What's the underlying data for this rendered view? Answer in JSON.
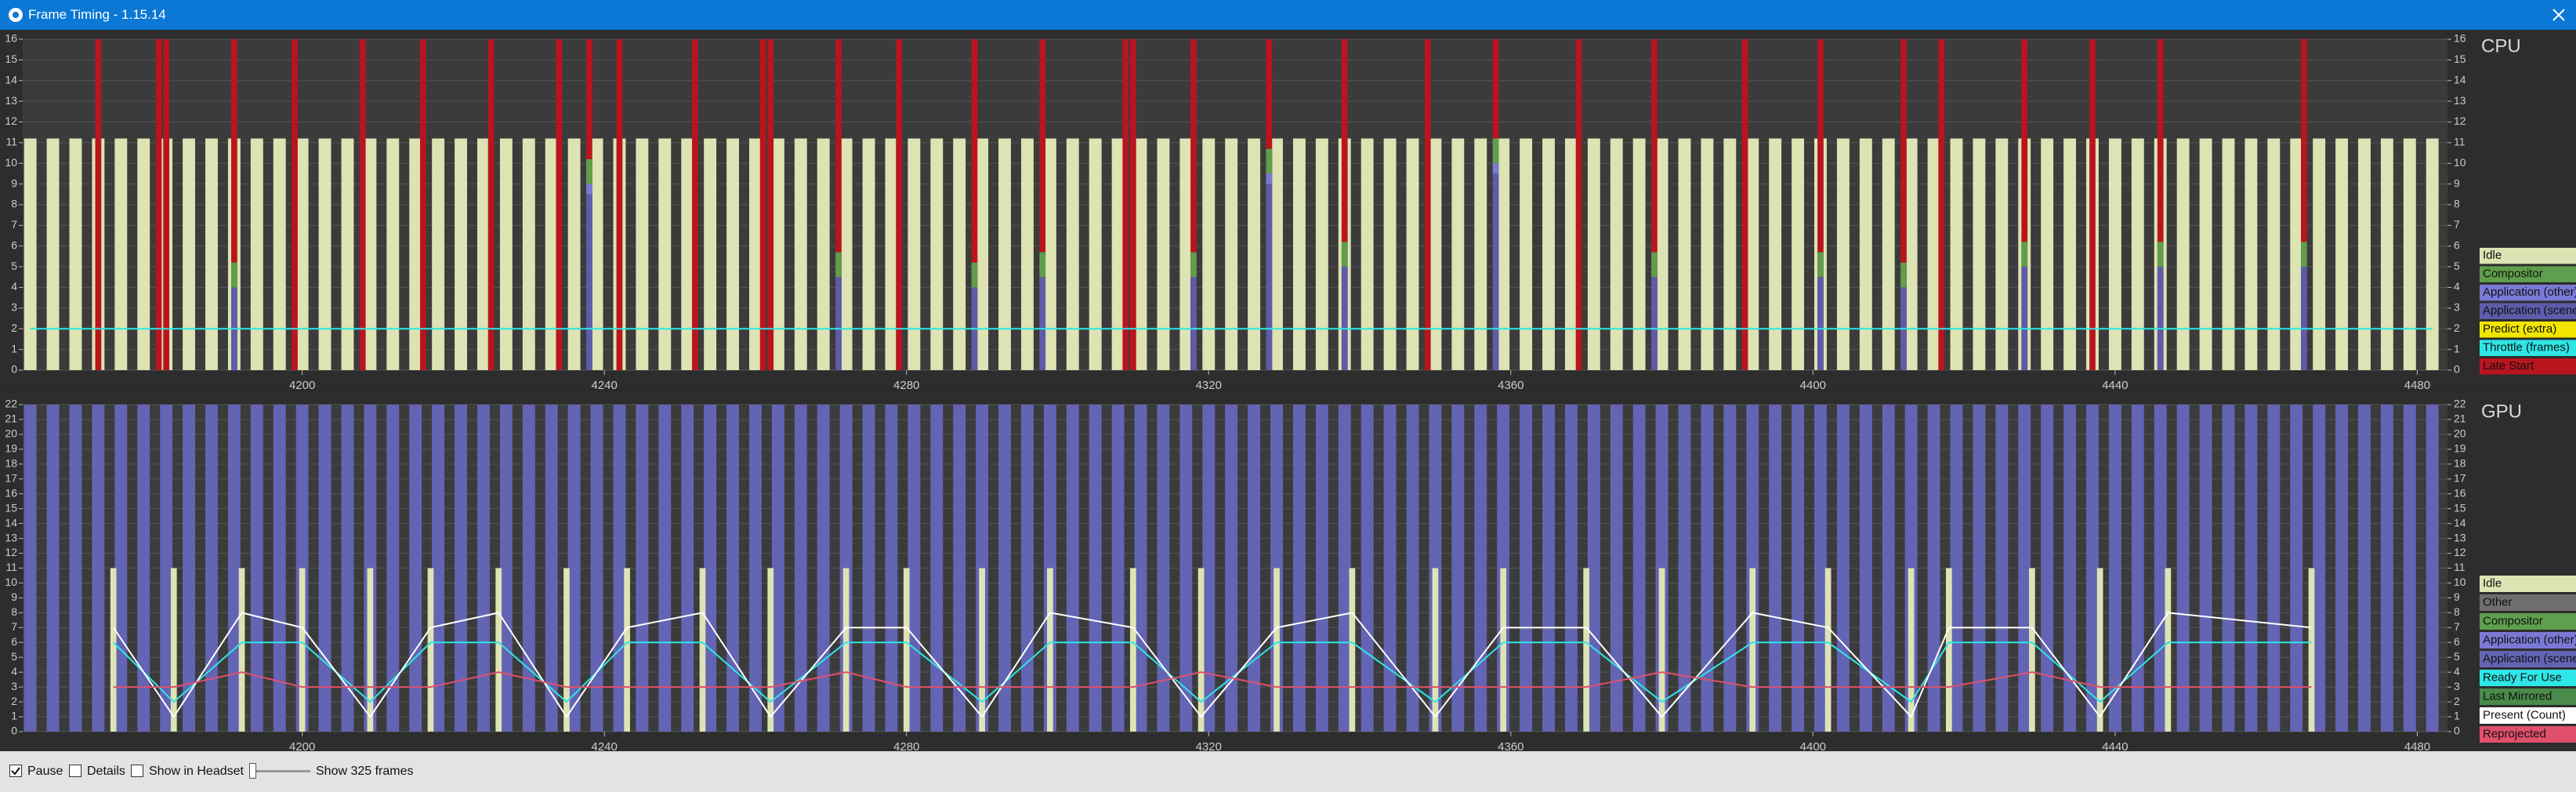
{
  "window": {
    "title": "Frame Timing - 1.15.14"
  },
  "chart_data": [
    {
      "type": "bar",
      "title": "CPU",
      "xlim": [
        4163,
        4484
      ],
      "ylim": [
        0,
        16
      ],
      "yticks": [
        0,
        1,
        2,
        3,
        4,
        5,
        6,
        7,
        8,
        9,
        10,
        11,
        12,
        13,
        14,
        15,
        16
      ],
      "xticks": [
        4200,
        4240,
        4280,
        4320,
        4360,
        4400,
        4440,
        4480
      ],
      "grid": true,
      "x": [
        4164,
        4167,
        4170,
        4173,
        4176,
        4179,
        4182,
        4185,
        4188,
        4191,
        4194,
        4197,
        4200,
        4203,
        4206,
        4209,
        4212,
        4215,
        4218,
        4221,
        4224,
        4227,
        4230,
        4233,
        4236,
        4239,
        4242,
        4245,
        4248,
        4251,
        4254,
        4257,
        4260,
        4263,
        4266,
        4269,
        4272,
        4275,
        4278,
        4281,
        4284,
        4287,
        4290,
        4293,
        4296,
        4299,
        4302,
        4305,
        4308,
        4311,
        4314,
        4317,
        4320,
        4323,
        4326,
        4329,
        4332,
        4335,
        4338,
        4341,
        4344,
        4347,
        4350,
        4353,
        4356,
        4359,
        4362,
        4365,
        4368,
        4371,
        4374,
        4377,
        4380,
        4383,
        4386,
        4389,
        4392,
        4395,
        4398,
        4401,
        4404,
        4407,
        4410,
        4413,
        4416,
        4419,
        4422,
        4425,
        4428,
        4431,
        4434,
        4437,
        4440,
        4443,
        4446,
        4449,
        4452,
        4455,
        4458,
        4461,
        4464,
        4467,
        4470,
        4473,
        4476,
        4479,
        4482
      ],
      "series": [
        {
          "name": "Idle",
          "kind": "bar",
          "color": "#dde3b3",
          "values": [
            11.2,
            11.2,
            11.2,
            11.2,
            11.2,
            11.2,
            11.2,
            11.2,
            11.2,
            11.2,
            11.2,
            11.2,
            11.2,
            11.2,
            11.2,
            11.2,
            11.2,
            11.2,
            11.2,
            11.2,
            11.2,
            11.2,
            11.2,
            11.2,
            11.2,
            11.2,
            11.2,
            11.2,
            11.2,
            11.2,
            11.2,
            11.2,
            11.2,
            11.2,
            11.2,
            11.2,
            11.2,
            11.2,
            11.2,
            11.2,
            11.2,
            11.2,
            11.2,
            11.2,
            11.2,
            11.2,
            11.2,
            11.2,
            11.2,
            11.2,
            11.2,
            11.2,
            11.2,
            11.2,
            11.2,
            11.2,
            11.2,
            11.2,
            11.2,
            11.2,
            11.2,
            11.2,
            11.2,
            11.2,
            11.2,
            11.2,
            11.2,
            11.2,
            11.2,
            11.2,
            11.2,
            11.2,
            11.2,
            11.2,
            11.2,
            11.2,
            11.2,
            11.2,
            11.2,
            11.2,
            11.2,
            11.2,
            11.2,
            11.2,
            11.2,
            11.2,
            11.2,
            11.2,
            11.2,
            11.2,
            11.2,
            11.2,
            11.2,
            11.2,
            11.2,
            11.2,
            11.2,
            11.2,
            11.2,
            11.2,
            11.2,
            11.2,
            11.2,
            11.2,
            11.2,
            11.2,
            11.2
          ]
        },
        {
          "name": "Compositor",
          "kind": "bar",
          "stack": true,
          "color": "#5f9e4c",
          "x": [
            4191,
            4238,
            4271,
            4289,
            4298,
            4318,
            4328,
            4338,
            4358,
            4379,
            4401,
            4412,
            4428,
            4446,
            4465
          ],
          "values": [
            1.2,
            1.2,
            1.2,
            1.2,
            1.2,
            1.2,
            1.2,
            1.2,
            1.2,
            1.2,
            1.2,
            1.2,
            1.2,
            1.2,
            1.2
          ]
        },
        {
          "name": "Application (other)",
          "kind": "bar",
          "stack": true,
          "color": "#7a7ad6",
          "x": [
            4238,
            4328,
            4358
          ],
          "values": [
            0.5,
            0.5,
            0.5
          ]
        },
        {
          "name": "Application (scene)",
          "kind": "bar",
          "stack": true,
          "color": "#5c5caa",
          "x": [
            4191,
            4238,
            4271,
            4289,
            4298,
            4318,
            4328,
            4338,
            4358,
            4379,
            4401,
            4412,
            4428,
            4446,
            4465
          ],
          "values": [
            4,
            8.5,
            4.5,
            4,
            4.5,
            4.5,
            9,
            5,
            9.5,
            4.5,
            4.5,
            4,
            5,
            5,
            5
          ]
        },
        {
          "name": "Predict (extra)",
          "kind": "line",
          "color": "#f2e600",
          "x": [],
          "values": []
        },
        {
          "name": "Throttle (frames)",
          "kind": "line",
          "color": "#2ee6e6",
          "x": [
            4164,
            4482
          ],
          "values": [
            2,
            2
          ]
        },
        {
          "name": "Late Start",
          "kind": "bar",
          "color": "#b9151f",
          "x": [
            4173,
            4181,
            4182,
            4191,
            4199,
            4208,
            4216,
            4225,
            4234,
            4238,
            4242,
            4252,
            4261,
            4262,
            4271,
            4279,
            4289,
            4298,
            4309,
            4310,
            4318,
            4328,
            4338,
            4349,
            4358,
            4369,
            4379,
            4391,
            4401,
            4412,
            4417,
            4428,
            4437,
            4446,
            4465
          ],
          "values": [
            16,
            16,
            16,
            16,
            16,
            16,
            16,
            16,
            16,
            16,
            16,
            16,
            16,
            16,
            16,
            16,
            16,
            16,
            16,
            16,
            16,
            16,
            16,
            16,
            16,
            16,
            16,
            16,
            16,
            16,
            16,
            16,
            16,
            16,
            16
          ]
        }
      ]
    },
    {
      "type": "bar",
      "title": "GPU",
      "xlim": [
        4163,
        4484
      ],
      "ylim": [
        0,
        22
      ],
      "yticks": [
        0,
        1,
        2,
        3,
        4,
        5,
        6,
        7,
        8,
        9,
        10,
        11,
        12,
        13,
        14,
        15,
        16,
        17,
        18,
        19,
        20,
        21,
        22
      ],
      "xticks": [
        4200,
        4240,
        4280,
        4320,
        4360,
        4400,
        4440,
        4480
      ],
      "grid": true,
      "x": [
        4164,
        4167,
        4170,
        4173,
        4176,
        4179,
        4182,
        4185,
        4188,
        4191,
        4194,
        4197,
        4200,
        4203,
        4206,
        4209,
        4212,
        4215,
        4218,
        4221,
        4224,
        4227,
        4230,
        4233,
        4236,
        4239,
        4242,
        4245,
        4248,
        4251,
        4254,
        4257,
        4260,
        4263,
        4266,
        4269,
        4272,
        4275,
        4278,
        4281,
        4284,
        4287,
        4290,
        4293,
        4296,
        4299,
        4302,
        4305,
        4308,
        4311,
        4314,
        4317,
        4320,
        4323,
        4326,
        4329,
        4332,
        4335,
        4338,
        4341,
        4344,
        4347,
        4350,
        4353,
        4356,
        4359,
        4362,
        4365,
        4368,
        4371,
        4374,
        4377,
        4380,
        4383,
        4386,
        4389,
        4392,
        4395,
        4398,
        4401,
        4404,
        4407,
        4410,
        4413,
        4416,
        4419,
        4422,
        4425,
        4428,
        4431,
        4434,
        4437,
        4440,
        4443,
        4446,
        4449,
        4452,
        4455,
        4458,
        4461,
        4464,
        4467,
        4470,
        4473,
        4476,
        4479,
        4482
      ],
      "series": [
        {
          "name": "Idle",
          "kind": "bar",
          "stack": true,
          "color": "#dde3b3",
          "x": [
            4175,
            4183,
            4192,
            4200,
            4209,
            4217,
            4226,
            4235,
            4243,
            4253,
            4262,
            4272,
            4280,
            4290,
            4299,
            4310,
            4319,
            4329,
            4339,
            4350,
            4359,
            4370,
            4380,
            4392,
            4402,
            4413,
            4418,
            4429,
            4438,
            4447,
            4466
          ],
          "values": [
            11,
            11,
            11,
            11,
            11,
            11,
            11,
            11,
            11,
            11,
            11,
            11,
            11,
            11,
            11,
            11,
            11,
            11,
            11,
            11,
            11,
            11,
            11,
            11,
            11,
            11,
            11,
            11,
            11,
            11,
            11
          ]
        },
        {
          "name": "Other",
          "kind": "bar",
          "color": "#6e6e6e",
          "x": [],
          "values": []
        },
        {
          "name": "Compositor",
          "kind": "bar",
          "color": "#5f9e4c",
          "x": [],
          "values": []
        },
        {
          "name": "Application (other)",
          "kind": "bar",
          "color": "#7a7ad6",
          "x": [],
          "values": []
        },
        {
          "name": "Application (scene)",
          "kind": "bar",
          "color": "#6464b4",
          "values": [
            22,
            22,
            22,
            22,
            22,
            22,
            22,
            22,
            22,
            22,
            22,
            22,
            22,
            22,
            22,
            22,
            22,
            22,
            22,
            22,
            22,
            22,
            22,
            22,
            22,
            22,
            22,
            22,
            22,
            22,
            22,
            22,
            22,
            22,
            22,
            22,
            22,
            22,
            22,
            22,
            22,
            22,
            22,
            22,
            22,
            22,
            22,
            22,
            22,
            22,
            22,
            22,
            22,
            22,
            22,
            22,
            22,
            22,
            22,
            22,
            22,
            22,
            22,
            22,
            22,
            22,
            22,
            22,
            22,
            22,
            22,
            22,
            22,
            22,
            22,
            22,
            22,
            22,
            22,
            22,
            22,
            22,
            22,
            22,
            22,
            22,
            22,
            22,
            22,
            22,
            22,
            22,
            22,
            22,
            22,
            22,
            22,
            22,
            22,
            22,
            22,
            22,
            22,
            22,
            22,
            22,
            22
          ]
        },
        {
          "name": "Ready For Use",
          "kind": "line",
          "color": "#2ee6e6",
          "x": [
            4175,
            4183,
            4192,
            4200,
            4209,
            4217,
            4226,
            4235,
            4243,
            4253,
            4262,
            4272,
            4280,
            4290,
            4299,
            4310,
            4319,
            4329,
            4339,
            4350,
            4359,
            4370,
            4380,
            4392,
            4402,
            4413,
            4418,
            4429,
            4438,
            4447,
            4466
          ],
          "values": [
            6,
            2,
            6,
            6,
            2,
            6,
            6,
            2,
            6,
            6,
            2,
            6,
            6,
            2,
            6,
            6,
            2,
            6,
            6,
            2,
            6,
            6,
            2,
            6,
            6,
            2,
            6,
            6,
            2,
            6,
            6
          ]
        },
        {
          "name": "Last Mirrored",
          "kind": "line",
          "color": "#4a8a4a",
          "x": [],
          "values": []
        },
        {
          "name": "Present (Count)",
          "kind": "line",
          "color": "#ffffff",
          "x": [
            4175,
            4183,
            4192,
            4200,
            4209,
            4217,
            4226,
            4235,
            4243,
            4253,
            4262,
            4272,
            4280,
            4290,
            4299,
            4310,
            4319,
            4329,
            4339,
            4350,
            4359,
            4370,
            4380,
            4392,
            4402,
            4413,
            4418,
            4429,
            4438,
            4447,
            4466
          ],
          "values": [
            7,
            1,
            8,
            7,
            1,
            7,
            8,
            1,
            7,
            8,
            1,
            7,
            7,
            1,
            8,
            7,
            1,
            7,
            8,
            1,
            7,
            7,
            1,
            8,
            7,
            1,
            7,
            7,
            1,
            8,
            7
          ]
        },
        {
          "name": "Reprojected",
          "kind": "line",
          "color": "#e0506a",
          "x": [
            4175,
            4183,
            4192,
            4200,
            4209,
            4217,
            4226,
            4235,
            4243,
            4253,
            4262,
            4272,
            4280,
            4290,
            4299,
            4310,
            4319,
            4329,
            4339,
            4350,
            4359,
            4370,
            4380,
            4392,
            4402,
            4413,
            4418,
            4429,
            4438,
            4447,
            4466
          ],
          "values": [
            3,
            3,
            4,
            3,
            3,
            3,
            4,
            3,
            3,
            3,
            3,
            4,
            3,
            3,
            3,
            3,
            4,
            3,
            3,
            3,
            3,
            3,
            4,
            3,
            3,
            3,
            3,
            4,
            3,
            3,
            3
          ]
        }
      ]
    }
  ],
  "controls": {
    "pause": "Pause",
    "pause_checked": true,
    "details": "Details",
    "details_checked": false,
    "show_in_headset": "Show in Headset",
    "show_in_headset_checked": false,
    "frames": "Show 325 frames"
  }
}
